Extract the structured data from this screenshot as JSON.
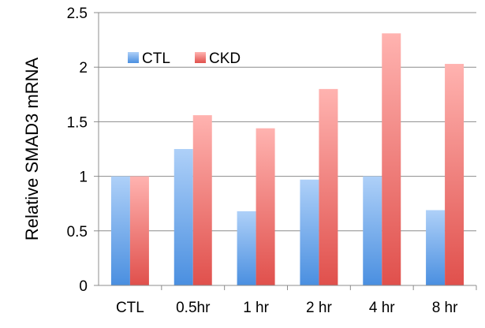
{
  "chart_data": {
    "type": "bar",
    "ylabel": "Relative SMAD3 mRNA",
    "xlabel": "",
    "title": "",
    "categories": [
      "CTL",
      "0.5hr",
      "1 hr",
      "2 hr",
      "4 hr",
      "8 hr"
    ],
    "series": [
      {
        "name": "CTL",
        "values": [
          1.0,
          1.25,
          0.68,
          0.97,
          1.0,
          0.69
        ],
        "color_top": "#aed0f8",
        "color_bottom": "#4a8fe0"
      },
      {
        "name": "CKD",
        "values": [
          1.0,
          1.56,
          1.44,
          1.8,
          2.31,
          2.03
        ],
        "color_top": "#ffb3b0",
        "color_bottom": "#e0504c"
      }
    ],
    "ylim": [
      0,
      2.5
    ],
    "yticks": [
      "0",
      "0.5",
      "1",
      "1.5",
      "2",
      "2.5"
    ],
    "grid": true,
    "legend_position": "top-left"
  }
}
